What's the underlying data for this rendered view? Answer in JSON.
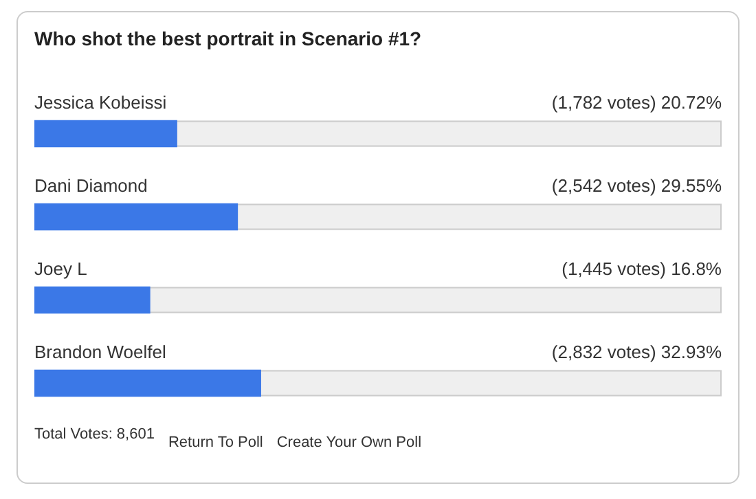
{
  "chart_data": {
    "type": "bar",
    "orientation": "horizontal",
    "title": "Who shot the best portrait in Scenario #1?",
    "categories": [
      "Jessica Kobeissi",
      "Dani Diamond",
      "Joey L",
      "Brandon Woelfel"
    ],
    "values": [
      20.72,
      29.55,
      16.8,
      32.93
    ],
    "value_labels": [
      "(1,782 votes) 20.72%",
      "(2,542 votes) 29.55%",
      "(1,445 votes) 16.8%",
      "(2,832 votes) 32.93%"
    ],
    "color": "#3b78e7",
    "xlim": [
      0,
      100
    ],
    "tick_labels": false,
    "grid": false,
    "legend": false,
    "annotations": [
      "Total Votes: 8,601",
      "Return To Poll",
      "Create Your Own Poll"
    ]
  }
}
